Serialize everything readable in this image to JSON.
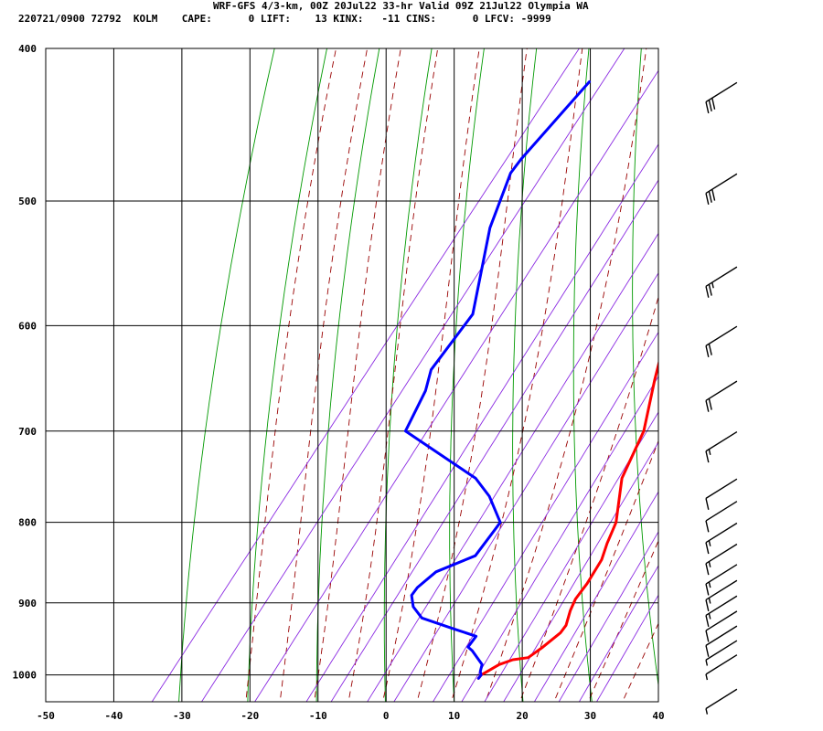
{
  "header": {
    "title": "WRF-GFS 4/3-km, 00Z 20Jul22 33-hr Valid 09Z 21Jul22 Olympia WA",
    "stats": "220721/0900 72792  KOLM    CAPE:      0 LIFT:    13 KINX:   -11 CINS:      0 LFCV: -9999"
  },
  "chart_data": {
    "type": "line",
    "title": "WRF-GFS 4/3-km, 00Z 20Jul22 33-hr Valid 09Z 21Jul22 Olympia WA",
    "xlabel": "",
    "ylabel": "",
    "xlim": [
      -50,
      40
    ],
    "ylim": [
      1040,
      400
    ],
    "y_scale": "log-pressure (skew-T)",
    "x_ticks": [
      -50,
      -40,
      -30,
      -20,
      -10,
      0,
      10,
      20,
      30,
      40
    ],
    "x_tick_labels": [
      "-50",
      "-40",
      "-30",
      "-20",
      "-10",
      "0",
      "10",
      "20",
      "30",
      "40"
    ],
    "y_ticks": [
      400,
      500,
      600,
      700,
      800,
      900,
      1000
    ],
    "y_tick_labels": [
      "400",
      "500",
      "600",
      "700",
      "800",
      "900",
      "1000"
    ],
    "grid": true,
    "colors": {
      "temperature": "#ff0000",
      "dewpoint": "#0000ff",
      "dry_adiabat": "#009900",
      "moist_adiabat": "#990000",
      "mixing_ratio": "#8b2be2",
      "grid": "#000000"
    },
    "series": [
      {
        "role": "temperature",
        "pressure": [
          1005,
          1000,
          995,
          985,
          978,
          975,
          960,
          940,
          930,
          910,
          895,
          875,
          845,
          825,
          800,
          750,
          700,
          650,
          600,
          550,
          500,
          420
        ],
        "x": [
          11,
          11,
          11.5,
          12.5,
          14,
          16,
          17,
          18,
          18,
          17,
          16.5,
          16.5,
          16,
          15,
          14,
          10,
          8,
          4,
          0,
          -6,
          -10.5,
          -20
        ]
      },
      {
        "role": "dewpoint",
        "pressure": [
          1005,
          1000,
          995,
          985,
          965,
          960,
          945,
          935,
          920,
          905,
          890,
          880,
          860,
          840,
          810,
          800,
          770,
          750,
          700,
          660,
          640,
          600,
          590,
          520,
          480,
          470,
          420
        ],
        "x": [
          11,
          11,
          10.5,
          10,
          7,
          6,
          6,
          2,
          -4,
          -6.5,
          -8,
          -8,
          -7,
          -3,
          -3,
          -3,
          -7.5,
          -11.5,
          -27,
          -28.5,
          -30,
          -30,
          -30,
          -37,
          -40,
          -40,
          -38.5
        ]
      }
    ],
    "wind_barbs": [
      {
        "pressure": 420,
        "kt": 30
      },
      {
        "pressure": 480,
        "kt": 30
      },
      {
        "pressure": 550,
        "kt": 25
      },
      {
        "pressure": 600,
        "kt": 20
      },
      {
        "pressure": 650,
        "kt": 20
      },
      {
        "pressure": 700,
        "kt": 15
      },
      {
        "pressure": 750,
        "kt": 10
      },
      {
        "pressure": 775,
        "kt": 10
      },
      {
        "pressure": 800,
        "kt": 15
      },
      {
        "pressure": 825,
        "kt": 15
      },
      {
        "pressure": 850,
        "kt": 15
      },
      {
        "pressure": 870,
        "kt": 15
      },
      {
        "pressure": 890,
        "kt": 15
      },
      {
        "pressure": 910,
        "kt": 10
      },
      {
        "pressure": 930,
        "kt": 10
      },
      {
        "pressure": 950,
        "kt": 5
      },
      {
        "pressure": 970,
        "kt": 5
      },
      {
        "pressure": 1020,
        "kt": 5
      }
    ]
  }
}
